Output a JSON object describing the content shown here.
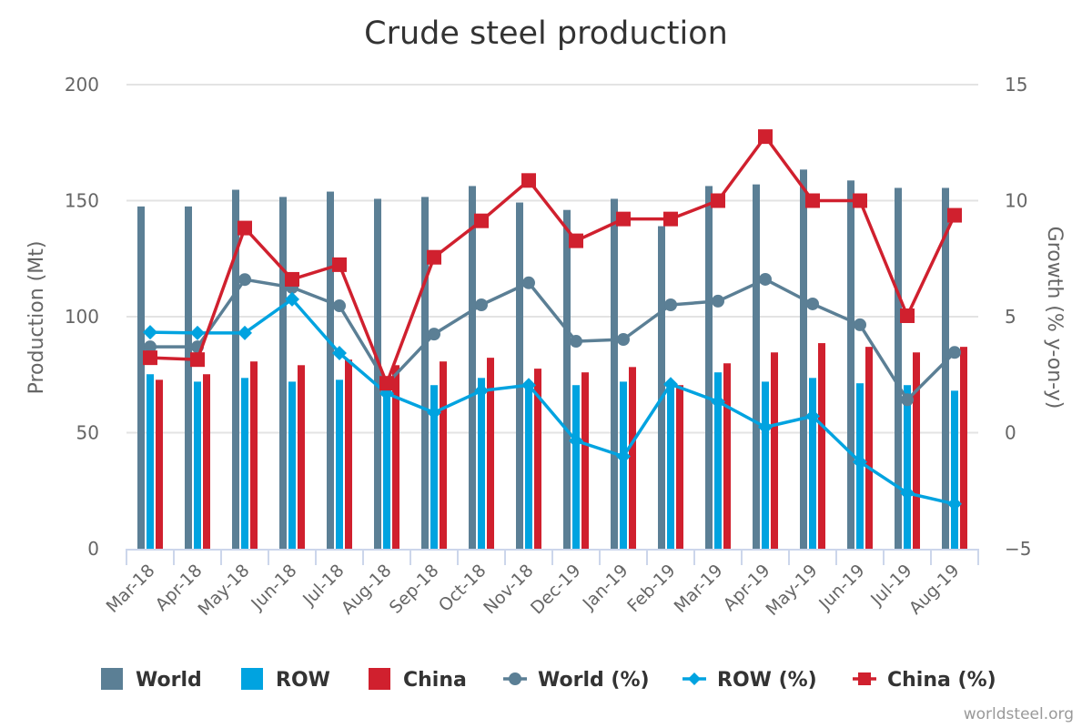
{
  "chart_data": {
    "type": "bar",
    "title": "Crude steel production",
    "xlabel": "",
    "ylabel": "Production (Mt)",
    "y2label": "Growth (% y-on-y)",
    "ylim": [
      0,
      200
    ],
    "y2lim": [
      -5,
      15
    ],
    "yticks": [
      "0",
      "50",
      "100",
      "150",
      "200"
    ],
    "y2ticks": [
      "−5",
      "0",
      "5",
      "10",
      "15"
    ],
    "grid": true,
    "legend_position": "bottom",
    "categories": [
      "Mar-18",
      "Apr-18",
      "May-18",
      "Jun-18",
      "Jul-18",
      "Aug-18",
      "Sep-18",
      "Oct-18",
      "Nov-18",
      "Dec-19",
      "Jan-19",
      "Feb-19",
      "Mar-19",
      "Apr-19",
      "May-19",
      "Jun-19",
      "Jul-19",
      "Aug-19"
    ],
    "series": [
      {
        "name": "World",
        "kind": "bar",
        "axis": "left",
        "color": "#5b7f95",
        "values": [
          147.5,
          147.5,
          154.7,
          151.6,
          153.9,
          150.8,
          151.6,
          156.3,
          149.2,
          146.0,
          150.8,
          139.0,
          156.3,
          157.0,
          163.4,
          158.7,
          155.5,
          155.5
        ]
      },
      {
        "name": "ROW",
        "kind": "bar",
        "axis": "left",
        "color": "#00a3e0",
        "values": [
          75.2,
          72.0,
          73.6,
          72.0,
          72.8,
          68.0,
          70.5,
          73.6,
          71.0,
          70.5,
          72.0,
          70.8,
          76.0,
          72.0,
          73.6,
          71.3,
          70.5,
          68.1
        ]
      },
      {
        "name": "China",
        "kind": "bar",
        "axis": "left",
        "color": "#d0202e",
        "values": [
          72.8,
          75.2,
          80.7,
          79.1,
          81.5,
          79.1,
          80.7,
          82.3,
          77.6,
          76.0,
          78.3,
          70.5,
          79.9,
          84.6,
          88.6,
          87.0,
          84.6,
          87.0
        ]
      },
      {
        "name": "World (%)",
        "kind": "line",
        "marker": "circle",
        "axis": "right",
        "color": "#5b7f95",
        "values": [
          3.7,
          3.7,
          6.6,
          6.26,
          5.47,
          2.1,
          4.25,
          5.51,
          6.46,
          3.94,
          4.02,
          5.51,
          5.67,
          6.61,
          5.55,
          4.65,
          1.42,
          3.46
        ]
      },
      {
        "name": "ROW (%)",
        "kind": "line",
        "marker": "diamond",
        "axis": "right",
        "color": "#00a3e0",
        "values": [
          4.33,
          4.3,
          4.3,
          5.75,
          3.43,
          1.69,
          0.87,
          1.81,
          2.05,
          -0.35,
          -1.02,
          2.09,
          1.34,
          0.24,
          0.71,
          -1.26,
          -2.6,
          -3.07
        ]
      },
      {
        "name": "China (%)",
        "kind": "line",
        "marker": "square",
        "axis": "right",
        "color": "#d0202e",
        "values": [
          3.23,
          3.15,
          8.82,
          6.61,
          7.24,
          2.13,
          7.56,
          9.13,
          10.87,
          8.27,
          9.21,
          9.21,
          10.0,
          12.76,
          10.0,
          10.0,
          5.04,
          9.37
        ]
      }
    ]
  },
  "credit": "worldsteel.org"
}
